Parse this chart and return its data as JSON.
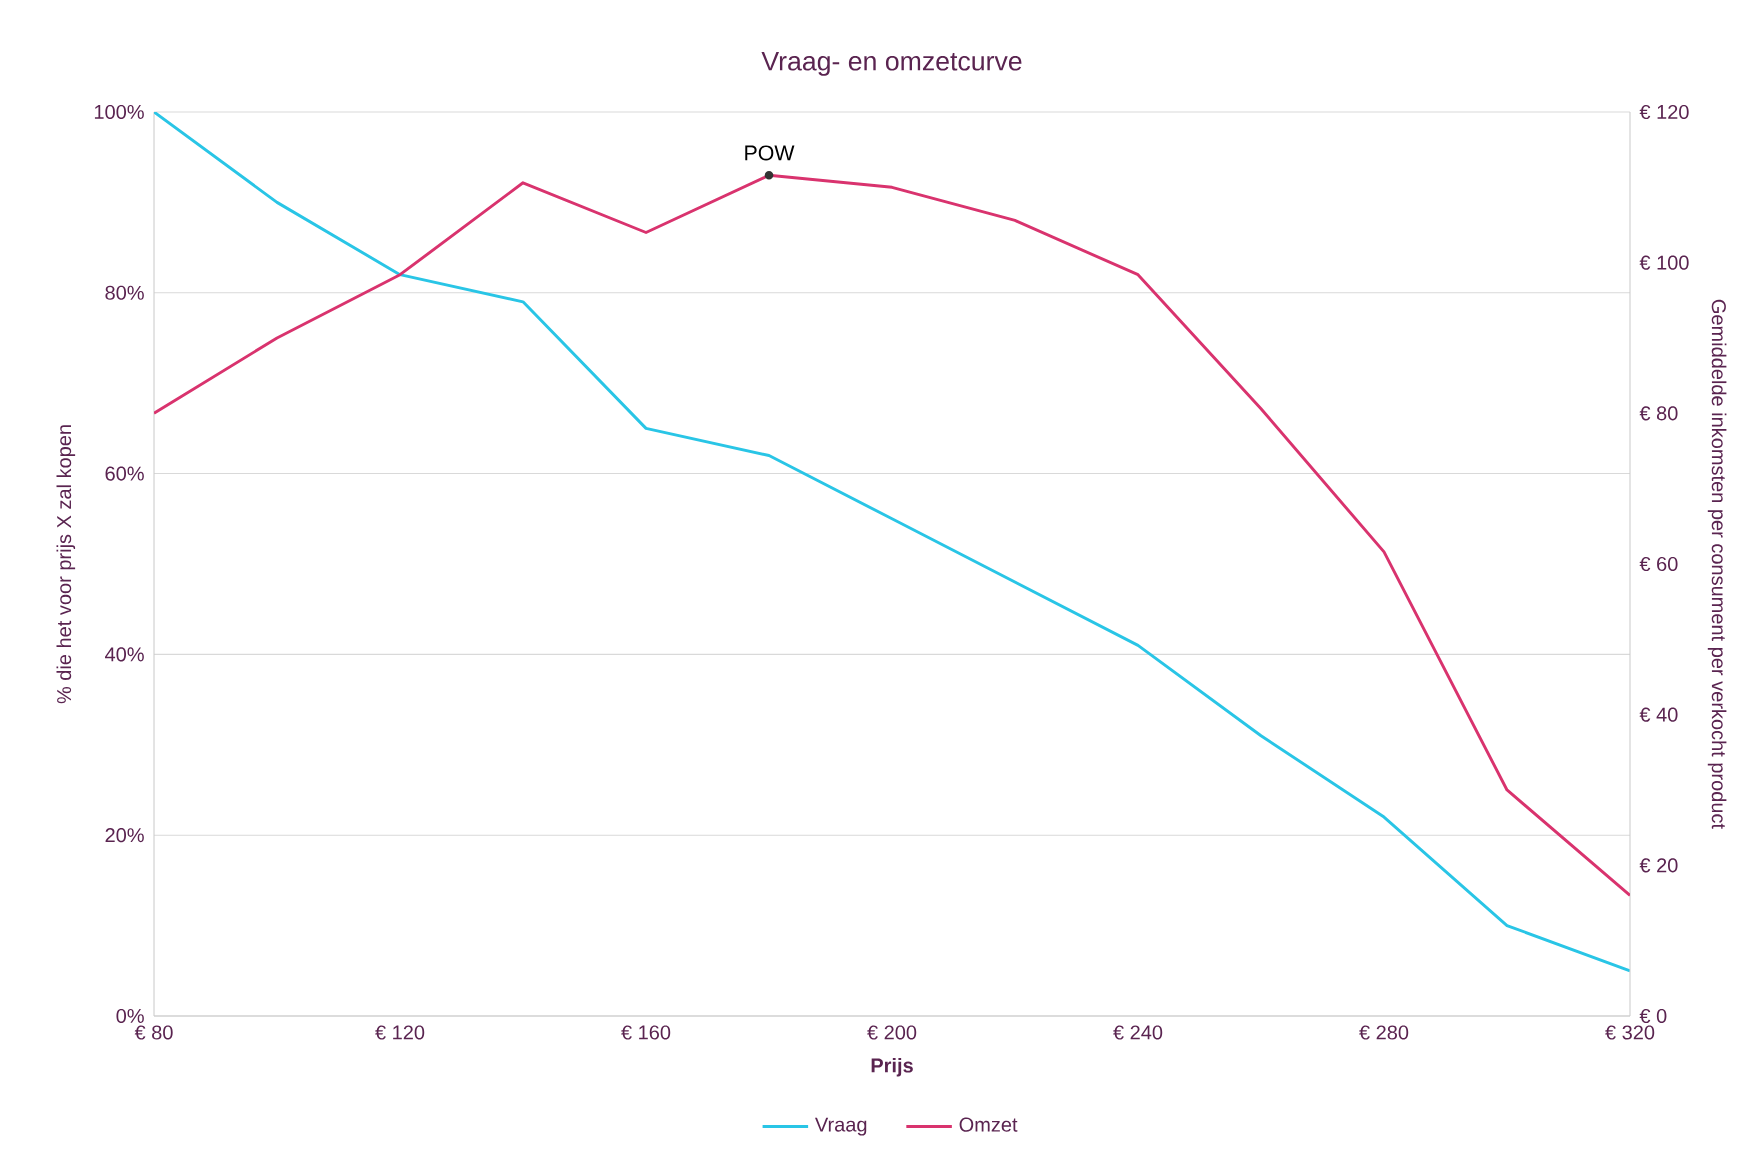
{
  "chart_data": {
    "type": "line",
    "title": "Vraag- en omzetcurve",
    "xlabel": "Prijs",
    "ylabel": "% die het voor prijs X zal kopen",
    "y2label": "Gemiddelde inkomsten per consument per verkocht product",
    "x": [
      80,
      100,
      120,
      140,
      160,
      180,
      200,
      220,
      240,
      260,
      280,
      300,
      320
    ],
    "series": [
      {
        "name": "Vraag",
        "color": "#29c5e6",
        "values": [
          100,
          90,
          82,
          79,
          65,
          62,
          55,
          48,
          41,
          31,
          22,
          10,
          5
        ]
      },
      {
        "name": "Omzet",
        "color": "#d9336e",
        "axis": "y2",
        "values": [
          80,
          90,
          98.4,
          110.6,
          104,
          111.6,
          110,
          105.6,
          98.4,
          80.6,
          61.6,
          30,
          16
        ]
      }
    ],
    "xlim": [
      80,
      320
    ],
    "xticks": [
      {
        "value": 80,
        "label": "€ 80"
      },
      {
        "value": 120,
        "label": "€ 120"
      },
      {
        "value": 160,
        "label": "€ 160"
      },
      {
        "value": 200,
        "label": "€ 200"
      },
      {
        "value": 240,
        "label": "€ 240"
      },
      {
        "value": 280,
        "label": "€ 280"
      },
      {
        "value": 320,
        "label": "€ 320"
      }
    ],
    "ylim": [
      0,
      100
    ],
    "yticks": [
      {
        "value": 0,
        "label": "0%"
      },
      {
        "value": 20,
        "label": "20%"
      },
      {
        "value": 40,
        "label": "40%"
      },
      {
        "value": 60,
        "label": "60%"
      },
      {
        "value": 80,
        "label": "80%"
      },
      {
        "value": 100,
        "label": "100%"
      }
    ],
    "y2lim": [
      0,
      120
    ],
    "y2ticks": [
      {
        "value": 0,
        "label": "€ 0"
      },
      {
        "value": 20,
        "label": "€ 20"
      },
      {
        "value": 40,
        "label": "€ 40"
      },
      {
        "value": 60,
        "label": "€ 60"
      },
      {
        "value": 80,
        "label": "€ 80"
      },
      {
        "value": 100,
        "label": "€ 100"
      },
      {
        "value": 120,
        "label": "€ 120"
      }
    ],
    "annotations": [
      "POW"
    ],
    "grid": "y",
    "legend": "bottom",
    "marker": "none",
    "line_style": "solid"
  }
}
